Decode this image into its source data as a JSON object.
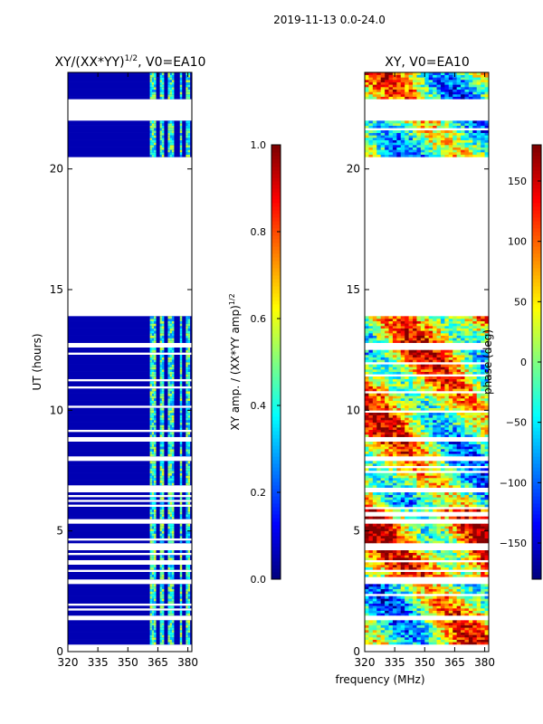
{
  "figure": {
    "suptitle": "2019-11-13 0.0-24.0",
    "shared_xlabel": "frequency (MHz)"
  },
  "chart_data": [
    {
      "type": "heatmap",
      "title_main": "XY/(XX*YY)",
      "title_sup": "1/2",
      "title_tail": ", V0=EA10",
      "xlabel": "",
      "ylabel": "UT (hours)",
      "xlim": [
        320,
        382
      ],
      "ylim": [
        0,
        24
      ],
      "xticks": [
        320,
        335,
        350,
        365,
        380
      ],
      "yticks": [
        0,
        5,
        10,
        15,
        20
      ],
      "colorbar": {
        "label_main": "XY amp. / (XX*YY amp)",
        "label_sup": "1/2",
        "range": [
          0.0,
          1.0
        ],
        "ticks": [
          "0.0",
          "0.2",
          "0.4",
          "0.6",
          "0.8",
          "1.0"
        ],
        "colormap": "jet"
      },
      "data_bands_hours": [
        [
          0.3,
          1.3
        ],
        [
          1.5,
          2.8
        ],
        [
          3.0,
          4.2
        ],
        [
          4.5,
          5.3
        ],
        [
          5.5,
          6.6
        ],
        [
          6.8,
          7.9
        ],
        [
          8.1,
          8.7
        ],
        [
          8.9,
          12.6
        ],
        [
          12.8,
          13.9
        ],
        [
          20.5,
          22.0
        ],
        [
          22.9,
          24.0
        ]
      ],
      "bright_channels_mhz": [
        [
          361,
          364
        ],
        [
          366,
          368
        ],
        [
          370,
          373
        ],
        [
          376,
          377
        ],
        [
          379,
          381
        ]
      ],
      "background_level": 0.05,
      "peak_level": 0.55
    },
    {
      "type": "heatmap",
      "title": "XY, V0=EA10",
      "xlabel": "",
      "ylabel": "",
      "xlim": [
        320,
        382
      ],
      "ylim": [
        0,
        24
      ],
      "xticks": [
        320,
        335,
        350,
        365,
        380
      ],
      "yticks": [
        0,
        5,
        10,
        15,
        20
      ],
      "colorbar": {
        "label": "phase (deg)",
        "range": [
          -180,
          180
        ],
        "ticks": [
          "150",
          "100",
          "50",
          "0",
          "−50",
          "−100",
          "−150"
        ],
        "tick_values": [
          150,
          100,
          50,
          0,
          -50,
          -100,
          -150
        ],
        "colormap": "jet"
      },
      "data_bands_hours": [
        [
          0.3,
          1.3
        ],
        [
          1.5,
          2.8
        ],
        [
          3.0,
          4.2
        ],
        [
          4.5,
          5.3
        ],
        [
          5.5,
          6.6
        ],
        [
          6.8,
          7.9
        ],
        [
          8.1,
          8.7
        ],
        [
          8.9,
          12.6
        ],
        [
          12.8,
          13.9
        ],
        [
          20.5,
          22.0
        ],
        [
          22.9,
          24.0
        ]
      ]
    }
  ]
}
